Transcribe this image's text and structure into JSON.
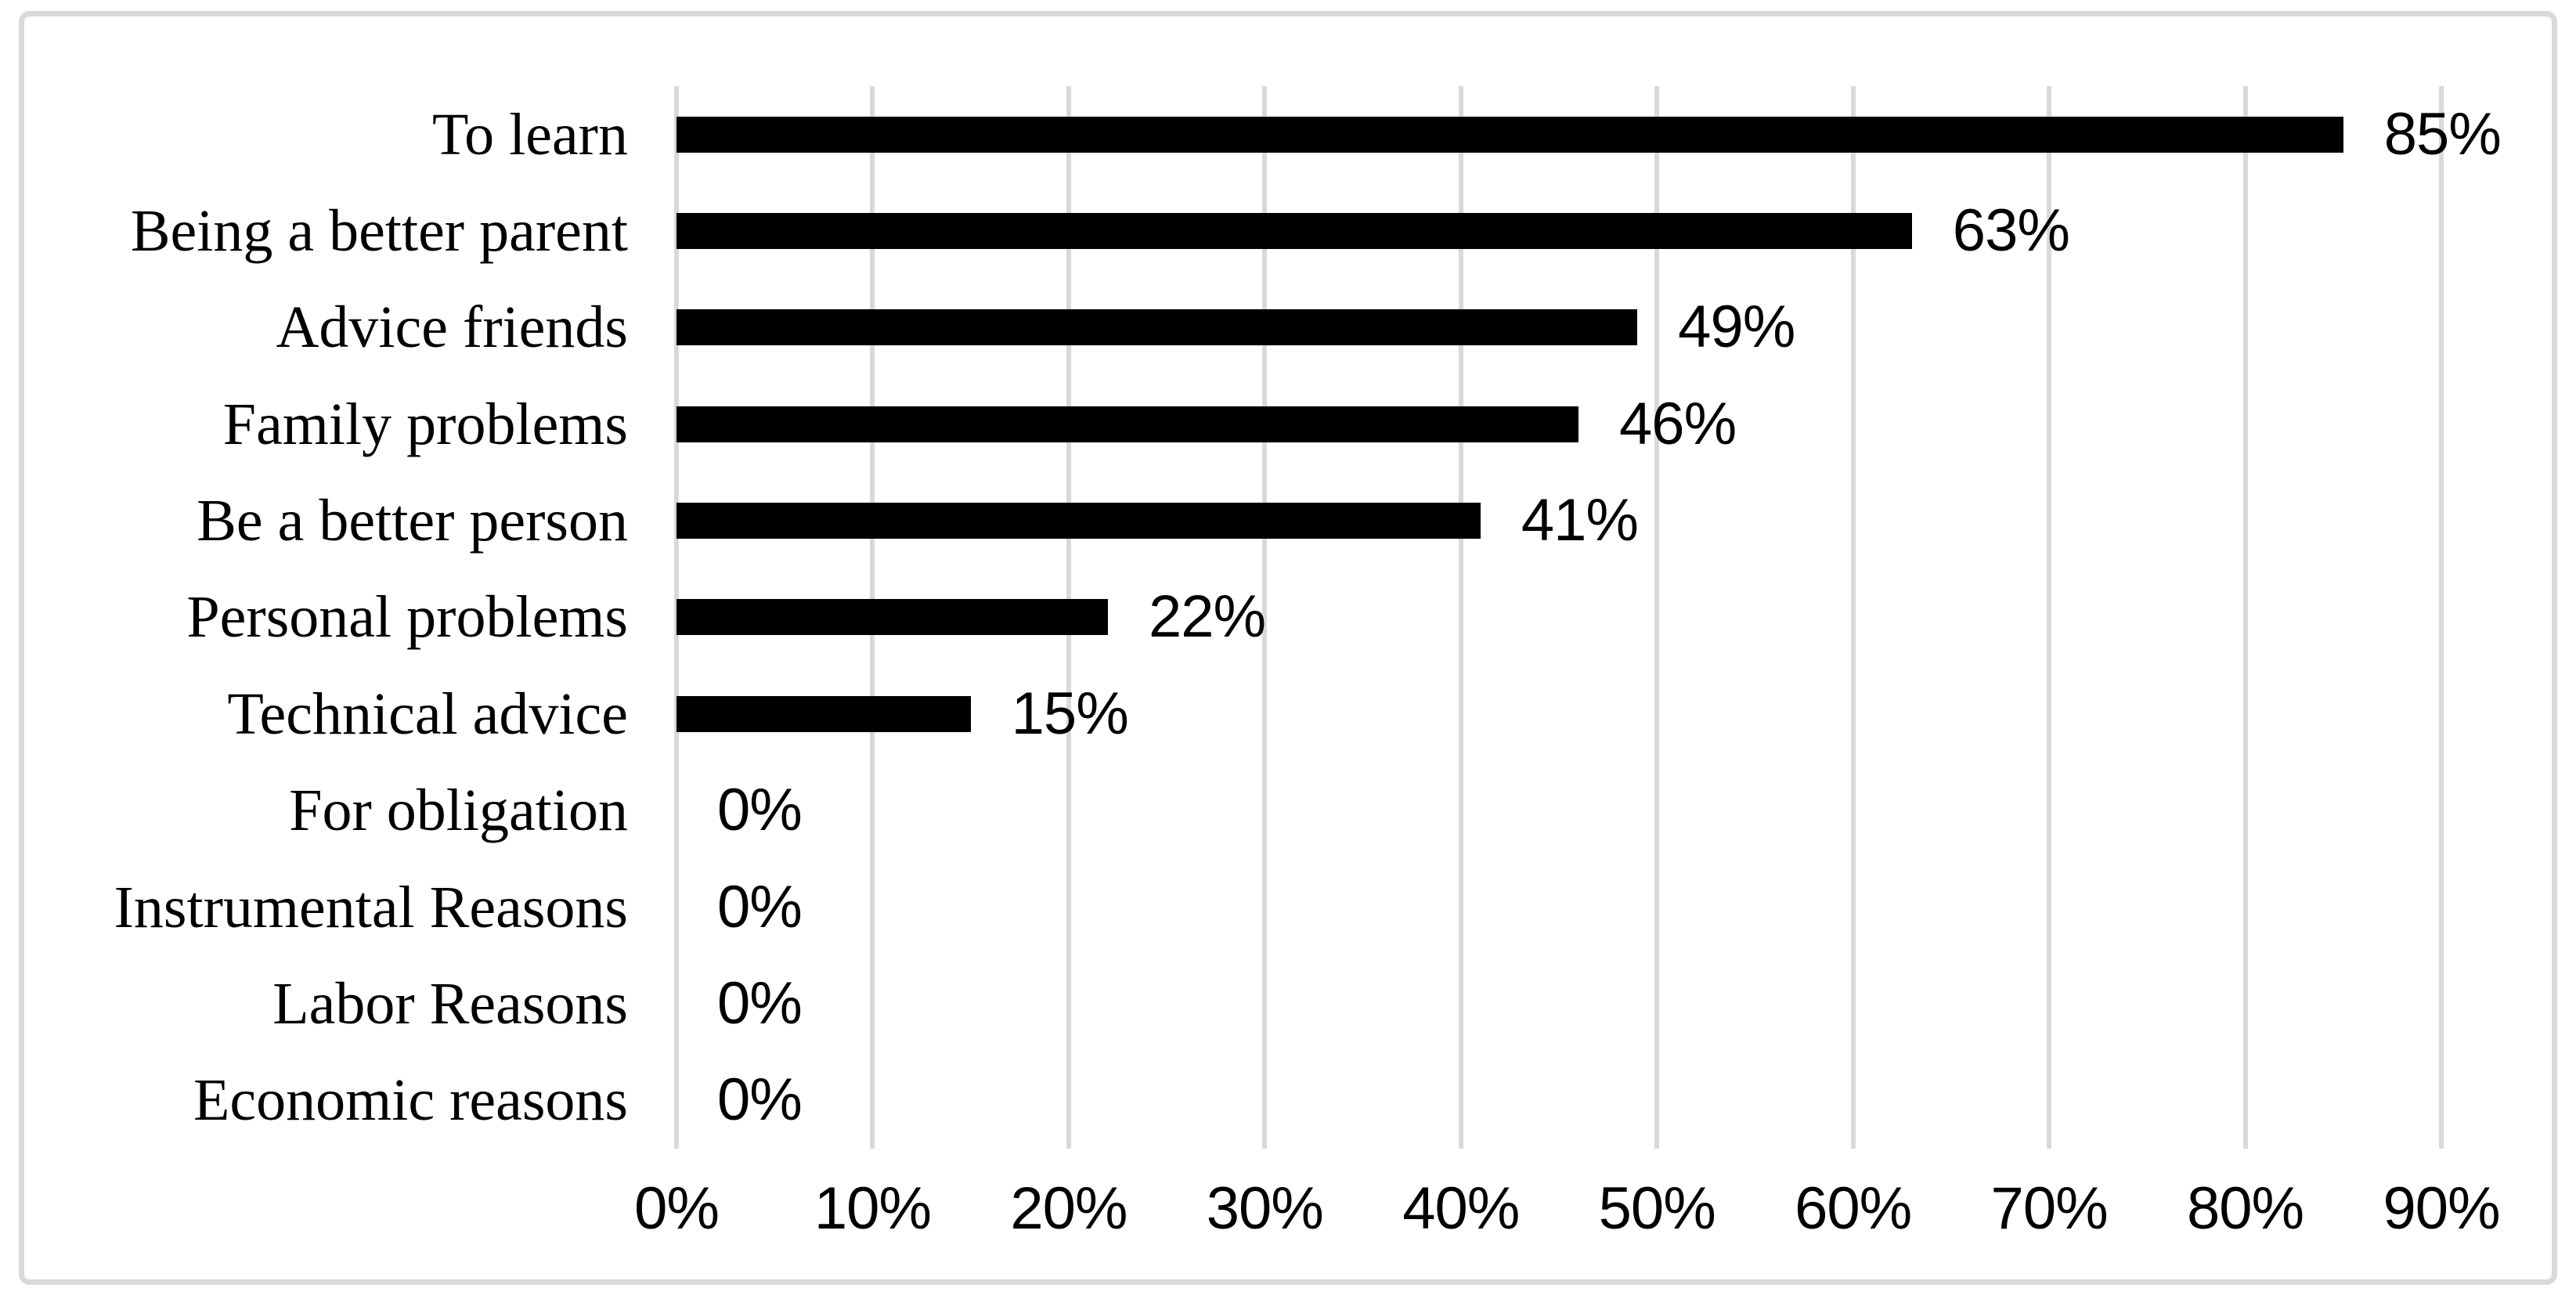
{
  "chart": {
    "background_color": "#ffffff",
    "frame_border_color": "#d9d9d9",
    "gridline_color": "#d9d9d9",
    "bar_color": "#000000",
    "text_color": "#000000"
  },
  "chart_data": {
    "type": "bar",
    "orientation": "horizontal",
    "title": "",
    "xlabel": "",
    "ylabel": "",
    "categories": [
      "To learn",
      "Being a better parent",
      "Advice friends",
      "Family problems",
      "Be a better person",
      "Personal problems",
      "Technical advice",
      "For obligation",
      "Instrumental Reasons",
      "Labor Reasons",
      "Economic reasons"
    ],
    "values": [
      85,
      63,
      49,
      46,
      41,
      22,
      15,
      0,
      0,
      0,
      0
    ],
    "data_labels": [
      "85%",
      "63%",
      "49%",
      "46%",
      "41%",
      "22%",
      "15%",
      "0%",
      "0%",
      "0%",
      "0%"
    ],
    "xlim": [
      0,
      90
    ],
    "x_tick_values": [
      0,
      10,
      20,
      30,
      40,
      50,
      60,
      70,
      80,
      90
    ],
    "x_ticks": [
      "0%",
      "10%",
      "20%",
      "30%",
      "40%",
      "50%",
      "60%",
      "70%",
      "80%",
      "90%"
    ],
    "grid": "vertical",
    "legend": "none"
  }
}
